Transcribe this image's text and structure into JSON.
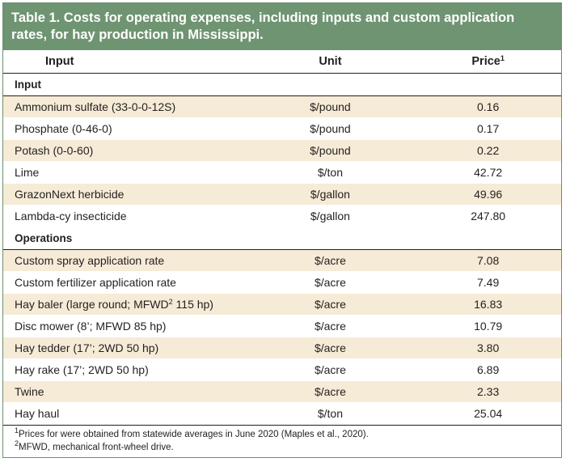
{
  "title": "Table 1. Costs for operating expenses, including inputs and custom application rates, for hay production in Mississippi.",
  "headers": {
    "input": "Input",
    "unit": "Unit",
    "price": "Price",
    "price_sup": "1"
  },
  "sections": [
    {
      "label": "Input",
      "rows": [
        {
          "input": "Ammonium sulfate (33-0-0-12S)",
          "unit": "$/pound",
          "price": "0.16"
        },
        {
          "input": "Phosphate (0-46-0)",
          "unit": "$/pound",
          "price": "0.17"
        },
        {
          "input": "Potash (0-0-60)",
          "unit": "$/pound",
          "price": "0.22"
        },
        {
          "input": "Lime",
          "unit": "$/ton",
          "price": "42.72"
        },
        {
          "input": "GrazonNext herbicide",
          "unit": "$/gallon",
          "price": "49.96"
        },
        {
          "input": "Lambda-cy insecticide",
          "unit": "$/gallon",
          "price": "247.80"
        }
      ]
    },
    {
      "label": "Operations",
      "rows": [
        {
          "input": "Custom spray application rate",
          "unit": "$/acre",
          "price": "7.08"
        },
        {
          "input": "Custom fertilizer application rate",
          "unit": "$/acre",
          "price": "7.49"
        },
        {
          "input_before": "Hay baler (large round; MFWD",
          "input_sup": "2",
          "input_after": " 115 hp)",
          "unit": "$/acre",
          "price": "16.83"
        },
        {
          "input": "Disc mower (8’; MFWD 85 hp)",
          "unit": "$/acre",
          "price": "10.79"
        },
        {
          "input": "Hay tedder (17’; 2WD 50 hp)",
          "unit": "$/acre",
          "price": "3.80"
        },
        {
          "input": "Hay rake (17’; 2WD 50 hp)",
          "unit": "$/acre",
          "price": "6.89"
        },
        {
          "input": "Twine",
          "unit": "$/acre",
          "price": "2.33"
        },
        {
          "input": "Hay haul",
          "unit": "$/ton",
          "price": "25.04"
        }
      ]
    }
  ],
  "footnotes": [
    {
      "mark": "1",
      "text": "Prices for were obtained from statewide averages in June 2020 (Maples et al., 2020)."
    },
    {
      "mark": "2",
      "text": "MFWD, mechanical front-wheel drive."
    }
  ],
  "colors": {
    "title_bg": "#6f9471",
    "row_shade": "#f6ebd6"
  }
}
